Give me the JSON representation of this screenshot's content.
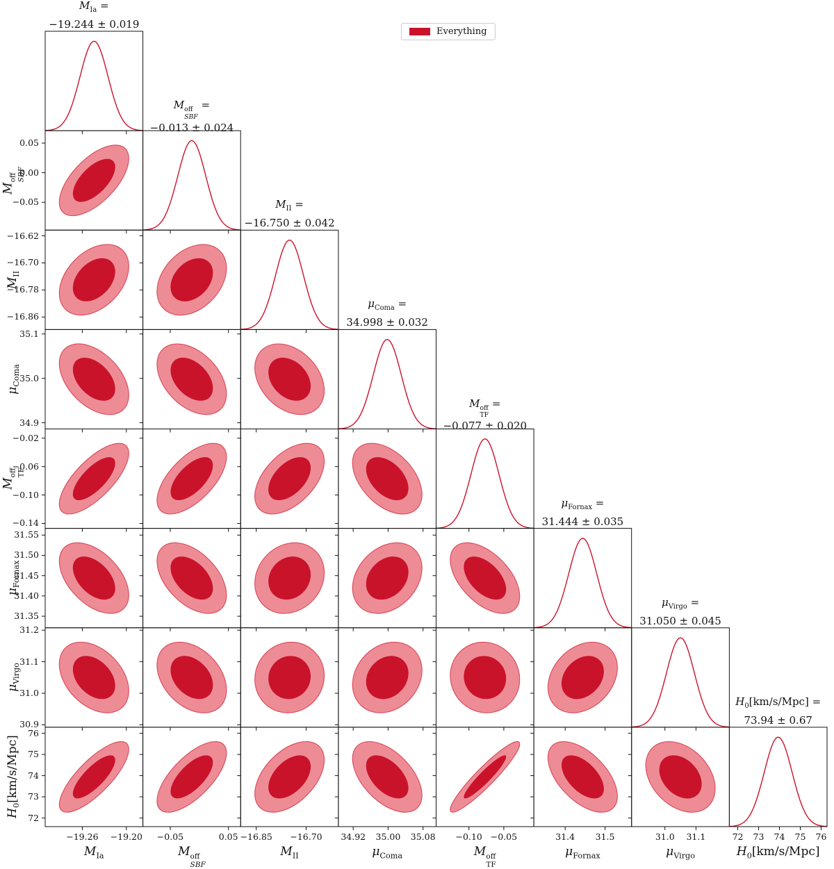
{
  "chart_data": {
    "type": "corner_contour",
    "description": "Triangle (corner) plot of posterior constraints: 1D marginal densities on the diagonal, 68%/95% filled contour ellipses off-diagonal",
    "legend": {
      "label": "Everything",
      "color": "#c9132a",
      "position": "top-center"
    },
    "colors": {
      "contour_dark": "#c9132a",
      "contour_light": "#ee8c96",
      "contour_edge": "#d9505e",
      "line": "#c9132a",
      "frame": "#111111"
    },
    "contour_levels": [
      0.68,
      0.95
    ],
    "parameters": [
      {
        "id": "MIa",
        "label_parts": {
          "base": "M",
          "sub": "Ia"
        },
        "mean": -19.244,
        "sigma": 0.019,
        "value_label": "−19.244 ± 0.019",
        "x_ticks": [
          {
            "v": -19.26,
            "label": "−19.26"
          },
          {
            "v": -19.2,
            "label": "−19.20"
          }
        ],
        "y_ticks": []
      },
      {
        "id": "MSBF",
        "label_parts": {
          "base": "M",
          "sub": "SBF",
          "sub_italic": true,
          "sup": "off"
        },
        "mean": -0.013,
        "sigma": 0.024,
        "value_label": "−0.013 ± 0.024",
        "x_ticks": [
          {
            "v": -0.05,
            "label": "−0.05"
          },
          {
            "v": 0.05,
            "label": "0.05"
          }
        ],
        "y_ticks": [
          {
            "v": 0.05,
            "label": "0.05"
          },
          {
            "v": 0.0,
            "label": "0.00"
          },
          {
            "v": -0.05,
            "label": "−0.05"
          }
        ]
      },
      {
        "id": "MII",
        "label_parts": {
          "base": "M",
          "sub": "II"
        },
        "mean": -16.75,
        "sigma": 0.042,
        "value_label": "−16.750 ± 0.042",
        "x_ticks": [
          {
            "v": -16.85,
            "label": "−16.85"
          },
          {
            "v": -16.7,
            "label": "−16.70"
          }
        ],
        "y_ticks": [
          {
            "v": -16.62,
            "label": "−16.62"
          },
          {
            "v": -16.7,
            "label": "−16.70"
          },
          {
            "v": -16.78,
            "label": "−16.78"
          },
          {
            "v": -16.86,
            "label": "−16.86"
          }
        ]
      },
      {
        "id": "muComa",
        "label_parts": {
          "base": "μ",
          "sub": "Coma"
        },
        "mean": 34.998,
        "sigma": 0.032,
        "value_label": "34.998 ± 0.032",
        "x_ticks": [
          {
            "v": 34.92,
            "label": "34.92"
          },
          {
            "v": 35.0,
            "label": "35.00"
          },
          {
            "v": 35.08,
            "label": "35.08"
          }
        ],
        "y_ticks": [
          {
            "v": 35.1,
            "label": "35.1"
          },
          {
            "v": 35.0,
            "label": "35.0"
          },
          {
            "v": 34.9,
            "label": "34.9"
          }
        ]
      },
      {
        "id": "MTF",
        "label_parts": {
          "base": "M",
          "sub": "TF",
          "sup": "off"
        },
        "mean": -0.077,
        "sigma": 0.02,
        "value_label": "−0.077 ± 0.020",
        "x_ticks": [
          {
            "v": -0.1,
            "label": "−0.10"
          },
          {
            "v": -0.05,
            "label": "−0.05"
          }
        ],
        "y_ticks": [
          {
            "v": -0.02,
            "label": "−0.02"
          },
          {
            "v": -0.06,
            "label": "−0.06"
          },
          {
            "v": -0.1,
            "label": "−0.10"
          },
          {
            "v": -0.14,
            "label": "−0.14"
          }
        ]
      },
      {
        "id": "muFornax",
        "label_parts": {
          "base": "μ",
          "sub": "Fornax"
        },
        "mean": 31.444,
        "sigma": 0.035,
        "value_label": "31.444 ± 0.035",
        "x_ticks": [
          {
            "v": 31.4,
            "label": "31.4"
          },
          {
            "v": 31.5,
            "label": "31.5"
          }
        ],
        "y_ticks": [
          {
            "v": 31.55,
            "label": "31.55"
          },
          {
            "v": 31.5,
            "label": "31.50"
          },
          {
            "v": 31.45,
            "label": "31.45"
          },
          {
            "v": 31.4,
            "label": "31.40"
          },
          {
            "v": 31.35,
            "label": "31.35"
          }
        ]
      },
      {
        "id": "muVirgo",
        "label_parts": {
          "base": "μ",
          "sub": "Virgo"
        },
        "mean": 31.05,
        "sigma": 0.045,
        "value_label": "31.050 ± 0.045",
        "x_ticks": [
          {
            "v": 31.0,
            "label": "31.0"
          },
          {
            "v": 31.1,
            "label": "31.1"
          }
        ],
        "y_ticks": [
          {
            "v": 31.2,
            "label": "31.2"
          },
          {
            "v": 31.1,
            "label": "31.1"
          },
          {
            "v": 31.0,
            "label": "31.0"
          },
          {
            "v": 30.9,
            "label": "30.9"
          }
        ]
      },
      {
        "id": "H0",
        "label_parts": {
          "base": "H",
          "sub": "0",
          "suffix": "[km/s/Mpc]"
        },
        "mean": 73.94,
        "sigma": 0.67,
        "value_label": "73.94 ± 0.67",
        "x_ticks": [
          {
            "v": 72,
            "label": "72"
          },
          {
            "v": 73,
            "label": "73"
          },
          {
            "v": 74,
            "label": "74"
          },
          {
            "v": 75,
            "label": "75"
          },
          {
            "v": 76,
            "label": "76"
          }
        ],
        "y_ticks": [
          {
            "v": 76,
            "label": "76"
          },
          {
            "v": 75,
            "label": "75"
          },
          {
            "v": 74,
            "label": "74"
          },
          {
            "v": 73,
            "label": "73"
          },
          {
            "v": 72,
            "label": "72"
          }
        ]
      }
    ],
    "correlations": {
      "1,0": 0.62,
      "2,0": 0.38,
      "2,1": 0.33,
      "3,0": -0.45,
      "3,1": -0.42,
      "3,2": -0.32,
      "4,0": 0.72,
      "4,1": 0.62,
      "4,2": 0.5,
      "4,3": -0.45,
      "5,0": -0.48,
      "5,1": -0.48,
      "5,2": 0.15,
      "5,3": 0.28,
      "5,4": -0.52,
      "6,0": -0.38,
      "6,1": -0.35,
      "6,2": 0.05,
      "6,3": 0.2,
      "6,4": -0.05,
      "6,5": 0.28,
      "7,0": 0.78,
      "7,1": 0.68,
      "7,2": 0.48,
      "7,3": -0.52,
      "7,4": 0.93,
      "7,5": -0.55,
      "7,6": -0.33
    },
    "axis_range_in_sigmas": 3.5
  }
}
